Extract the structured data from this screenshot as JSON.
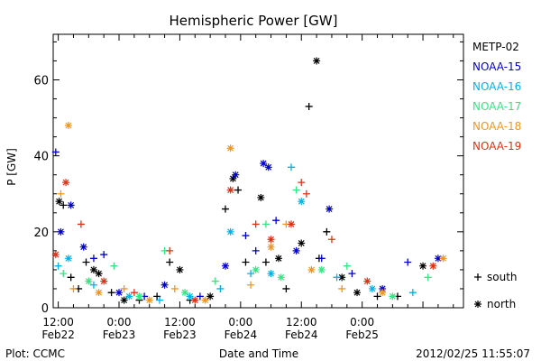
{
  "chart_data": {
    "type": "scatter",
    "title": "Hemispheric Power [GW]",
    "ylabel": "P [GW]",
    "xlabel": "Date and Time",
    "ylim": [
      0,
      72
    ],
    "xlim": [
      "2012-02-22 11:00",
      "2012-02-25 20:00"
    ],
    "yticks": [
      0,
      20,
      40,
      60
    ],
    "xticks": [
      {
        "x": "2012-02-22 12:00",
        "line1": "12:00",
        "line2": "Feb22"
      },
      {
        "x": "2012-02-23 00:00",
        "line1": "0:00",
        "line2": "Feb23"
      },
      {
        "x": "2012-02-23 12:00",
        "line1": "12:00",
        "line2": "Feb23"
      },
      {
        "x": "2012-02-24 00:00",
        "line1": "0:00",
        "line2": "Feb24"
      },
      {
        "x": "2012-02-24 12:00",
        "line1": "12:00",
        "line2": "Feb24"
      },
      {
        "x": "2012-02-25 00:00",
        "line1": "0:00",
        "line2": "Feb25"
      }
    ],
    "marker_legend": [
      {
        "label": "south",
        "symbol": "+"
      },
      {
        "label": "north",
        "symbol": "*"
      }
    ],
    "series": [
      {
        "name": "METP-02",
        "color": "#000000",
        "points": [
          {
            "x": "2012-02-22 12:10",
            "y": 28,
            "hemi": "north"
          },
          {
            "x": "2012-02-22 13:00",
            "y": 27,
            "hemi": "south"
          },
          {
            "x": "2012-02-22 14:30",
            "y": 8,
            "hemi": "south"
          },
          {
            "x": "2012-02-22 16:00",
            "y": 5,
            "hemi": "south"
          },
          {
            "x": "2012-02-22 17:30",
            "y": 12,
            "hemi": "south"
          },
          {
            "x": "2012-02-22 19:00",
            "y": 10,
            "hemi": "north"
          },
          {
            "x": "2012-02-22 20:00",
            "y": 9,
            "hemi": "north"
          },
          {
            "x": "2012-02-22 22:30",
            "y": 4,
            "hemi": "south"
          },
          {
            "x": "2012-02-23 01:00",
            "y": 2,
            "hemi": "north"
          },
          {
            "x": "2012-02-23 04:00",
            "y": 2,
            "hemi": "south"
          },
          {
            "x": "2012-02-23 07:30",
            "y": 3,
            "hemi": "south"
          },
          {
            "x": "2012-02-23 10:00",
            "y": 12,
            "hemi": "south"
          },
          {
            "x": "2012-02-23 12:00",
            "y": 10,
            "hemi": "north"
          },
          {
            "x": "2012-02-23 14:00",
            "y": 2,
            "hemi": "south"
          },
          {
            "x": "2012-02-23 18:00",
            "y": 3,
            "hemi": "north"
          },
          {
            "x": "2012-02-23 21:00",
            "y": 26,
            "hemi": "south"
          },
          {
            "x": "2012-02-23 22:30",
            "y": 34,
            "hemi": "north"
          },
          {
            "x": "2012-02-23 23:30",
            "y": 31,
            "hemi": "south"
          },
          {
            "x": "2012-02-24 01:00",
            "y": 12,
            "hemi": "south"
          },
          {
            "x": "2012-02-24 04:00",
            "y": 29,
            "hemi": "north"
          },
          {
            "x": "2012-02-24 05:00",
            "y": 12,
            "hemi": "south"
          },
          {
            "x": "2012-02-24 07:30",
            "y": 13,
            "hemi": "north"
          },
          {
            "x": "2012-02-24 09:00",
            "y": 5,
            "hemi": "south"
          },
          {
            "x": "2012-02-24 12:00",
            "y": 17,
            "hemi": "north"
          },
          {
            "x": "2012-02-24 13:30",
            "y": 53,
            "hemi": "south"
          },
          {
            "x": "2012-02-24 15:00",
            "y": 65,
            "hemi": "north"
          },
          {
            "x": "2012-02-24 15:30",
            "y": 13,
            "hemi": "south"
          },
          {
            "x": "2012-02-24 17:00",
            "y": 20,
            "hemi": "south"
          },
          {
            "x": "2012-02-24 20:00",
            "y": 8,
            "hemi": "north"
          },
          {
            "x": "2012-02-24 23:00",
            "y": 4,
            "hemi": "north"
          },
          {
            "x": "2012-02-25 03:00",
            "y": 3,
            "hemi": "south"
          },
          {
            "x": "2012-02-25 07:00",
            "y": 3,
            "hemi": "south"
          },
          {
            "x": "2012-02-25 12:00",
            "y": 11,
            "hemi": "north"
          }
        ]
      },
      {
        "name": "NOAA-15",
        "color": "#0000cc",
        "points": [
          {
            "x": "2012-02-22 11:30",
            "y": 41,
            "hemi": "south"
          },
          {
            "x": "2012-02-22 12:30",
            "y": 20,
            "hemi": "north"
          },
          {
            "x": "2012-02-22 14:30",
            "y": 27,
            "hemi": "north"
          },
          {
            "x": "2012-02-22 17:00",
            "y": 16,
            "hemi": "north"
          },
          {
            "x": "2012-02-22 19:00",
            "y": 13,
            "hemi": "south"
          },
          {
            "x": "2012-02-22 21:00",
            "y": 14,
            "hemi": "south"
          },
          {
            "x": "2012-02-23 00:00",
            "y": 4,
            "hemi": "north"
          },
          {
            "x": "2012-02-23 05:00",
            "y": 3,
            "hemi": "south"
          },
          {
            "x": "2012-02-23 09:00",
            "y": 6,
            "hemi": "north"
          },
          {
            "x": "2012-02-23 16:00",
            "y": 3,
            "hemi": "south"
          },
          {
            "x": "2012-02-23 21:00",
            "y": 11,
            "hemi": "north"
          },
          {
            "x": "2012-02-23 23:00",
            "y": 35,
            "hemi": "north"
          },
          {
            "x": "2012-02-24 01:00",
            "y": 19,
            "hemi": "south"
          },
          {
            "x": "2012-02-24 03:00",
            "y": 15,
            "hemi": "south"
          },
          {
            "x": "2012-02-24 04:30",
            "y": 38,
            "hemi": "north"
          },
          {
            "x": "2012-02-24 05:30",
            "y": 37,
            "hemi": "north"
          },
          {
            "x": "2012-02-24 07:00",
            "y": 23,
            "hemi": "south"
          },
          {
            "x": "2012-02-24 11:00",
            "y": 15,
            "hemi": "north"
          },
          {
            "x": "2012-02-24 16:00",
            "y": 13,
            "hemi": "south"
          },
          {
            "x": "2012-02-24 17:30",
            "y": 26,
            "hemi": "north"
          },
          {
            "x": "2012-02-24 22:00",
            "y": 9,
            "hemi": "south"
          },
          {
            "x": "2012-02-25 04:00",
            "y": 5,
            "hemi": "north"
          },
          {
            "x": "2012-02-25 09:00",
            "y": 12,
            "hemi": "south"
          },
          {
            "x": "2012-02-25 15:00",
            "y": 13,
            "hemi": "north"
          }
        ]
      },
      {
        "name": "NOAA-16",
        "color": "#00b4e6",
        "points": [
          {
            "x": "2012-02-22 12:00",
            "y": 11,
            "hemi": "south"
          },
          {
            "x": "2012-02-22 14:00",
            "y": 13,
            "hemi": "north"
          },
          {
            "x": "2012-02-22 19:00",
            "y": 6,
            "hemi": "south"
          },
          {
            "x": "2012-02-23 02:00",
            "y": 3,
            "hemi": "north"
          },
          {
            "x": "2012-02-23 08:00",
            "y": 2,
            "hemi": "south"
          },
          {
            "x": "2012-02-23 14:00",
            "y": 3,
            "hemi": "north"
          },
          {
            "x": "2012-02-23 20:00",
            "y": 5,
            "hemi": "south"
          },
          {
            "x": "2012-02-23 22:00",
            "y": 20,
            "hemi": "north"
          },
          {
            "x": "2012-02-24 02:00",
            "y": 9,
            "hemi": "south"
          },
          {
            "x": "2012-02-24 06:00",
            "y": 9,
            "hemi": "north"
          },
          {
            "x": "2012-02-24 10:00",
            "y": 37,
            "hemi": "south"
          },
          {
            "x": "2012-02-24 12:00",
            "y": 28,
            "hemi": "north"
          },
          {
            "x": "2012-02-24 19:00",
            "y": 8,
            "hemi": "south"
          },
          {
            "x": "2012-02-25 02:00",
            "y": 5,
            "hemi": "north"
          },
          {
            "x": "2012-02-25 10:00",
            "y": 4,
            "hemi": "south"
          }
        ]
      },
      {
        "name": "NOAA-17",
        "color": "#33e680",
        "points": [
          {
            "x": "2012-02-22 13:00",
            "y": 9,
            "hemi": "south"
          },
          {
            "x": "2012-02-22 18:00",
            "y": 7,
            "hemi": "north"
          },
          {
            "x": "2012-02-22 23:00",
            "y": 11,
            "hemi": "south"
          },
          {
            "x": "2012-02-23 04:00",
            "y": 3,
            "hemi": "north"
          },
          {
            "x": "2012-02-23 09:00",
            "y": 15,
            "hemi": "south"
          },
          {
            "x": "2012-02-23 13:00",
            "y": 4,
            "hemi": "north"
          },
          {
            "x": "2012-02-23 19:00",
            "y": 7,
            "hemi": "south"
          },
          {
            "x": "2012-02-24 03:00",
            "y": 10,
            "hemi": "north"
          },
          {
            "x": "2012-02-24 05:00",
            "y": 22,
            "hemi": "south"
          },
          {
            "x": "2012-02-24 08:00",
            "y": 8,
            "hemi": "north"
          },
          {
            "x": "2012-02-24 11:00",
            "y": 31,
            "hemi": "south"
          },
          {
            "x": "2012-02-24 16:00",
            "y": 10,
            "hemi": "north"
          },
          {
            "x": "2012-02-24 21:00",
            "y": 11,
            "hemi": "south"
          },
          {
            "x": "2012-02-25 06:00",
            "y": 3,
            "hemi": "north"
          },
          {
            "x": "2012-02-25 13:00",
            "y": 8,
            "hemi": "south"
          }
        ]
      },
      {
        "name": "NOAA-18",
        "color": "#f0961e",
        "points": [
          {
            "x": "2012-02-22 12:30",
            "y": 30,
            "hemi": "south"
          },
          {
            "x": "2012-02-22 14:00",
            "y": 48,
            "hemi": "north"
          },
          {
            "x": "2012-02-22 15:00",
            "y": 5,
            "hemi": "south"
          },
          {
            "x": "2012-02-22 20:00",
            "y": 4,
            "hemi": "north"
          },
          {
            "x": "2012-02-23 01:00",
            "y": 5,
            "hemi": "south"
          },
          {
            "x": "2012-02-23 06:00",
            "y": 2,
            "hemi": "north"
          },
          {
            "x": "2012-02-23 11:00",
            "y": 5,
            "hemi": "south"
          },
          {
            "x": "2012-02-23 17:00",
            "y": 2,
            "hemi": "north"
          },
          {
            "x": "2012-02-23 22:00",
            "y": 42,
            "hemi": "north"
          },
          {
            "x": "2012-02-24 02:00",
            "y": 6,
            "hemi": "south"
          },
          {
            "x": "2012-02-24 06:00",
            "y": 16,
            "hemi": "north"
          },
          {
            "x": "2012-02-24 09:00",
            "y": 22,
            "hemi": "south"
          },
          {
            "x": "2012-02-24 14:00",
            "y": 10,
            "hemi": "north"
          },
          {
            "x": "2012-02-24 20:00",
            "y": 5,
            "hemi": "south"
          },
          {
            "x": "2012-02-25 04:00",
            "y": 4,
            "hemi": "north"
          },
          {
            "x": "2012-02-25 16:00",
            "y": 13,
            "hemi": "north"
          }
        ]
      },
      {
        "name": "NOAA-19",
        "color": "#dc3214",
        "points": [
          {
            "x": "2012-02-22 11:30",
            "y": 14,
            "hemi": "north"
          },
          {
            "x": "2012-02-22 13:30",
            "y": 33,
            "hemi": "north"
          },
          {
            "x": "2012-02-22 16:30",
            "y": 22,
            "hemi": "south"
          },
          {
            "x": "2012-02-22 21:00",
            "y": 7,
            "hemi": "north"
          },
          {
            "x": "2012-02-23 03:00",
            "y": 4,
            "hemi": "south"
          },
          {
            "x": "2012-02-23 10:00",
            "y": 15,
            "hemi": "south"
          },
          {
            "x": "2012-02-23 15:00",
            "y": 2,
            "hemi": "north"
          },
          {
            "x": "2012-02-23 22:00",
            "y": 31,
            "hemi": "north"
          },
          {
            "x": "2012-02-24 03:00",
            "y": 22,
            "hemi": "south"
          },
          {
            "x": "2012-02-24 06:00",
            "y": 18,
            "hemi": "north"
          },
          {
            "x": "2012-02-24 10:00",
            "y": 22,
            "hemi": "north"
          },
          {
            "x": "2012-02-24 12:00",
            "y": 33,
            "hemi": "south"
          },
          {
            "x": "2012-02-24 13:00",
            "y": 30,
            "hemi": "south"
          },
          {
            "x": "2012-02-24 18:00",
            "y": 18,
            "hemi": "south"
          },
          {
            "x": "2012-02-25 01:00",
            "y": 7,
            "hemi": "north"
          },
          {
            "x": "2012-02-25 14:00",
            "y": 11,
            "hemi": "north"
          }
        ]
      }
    ]
  },
  "footer": {
    "left": "Plot: CCMC",
    "right": "2012/02/25 11:55:07"
  }
}
